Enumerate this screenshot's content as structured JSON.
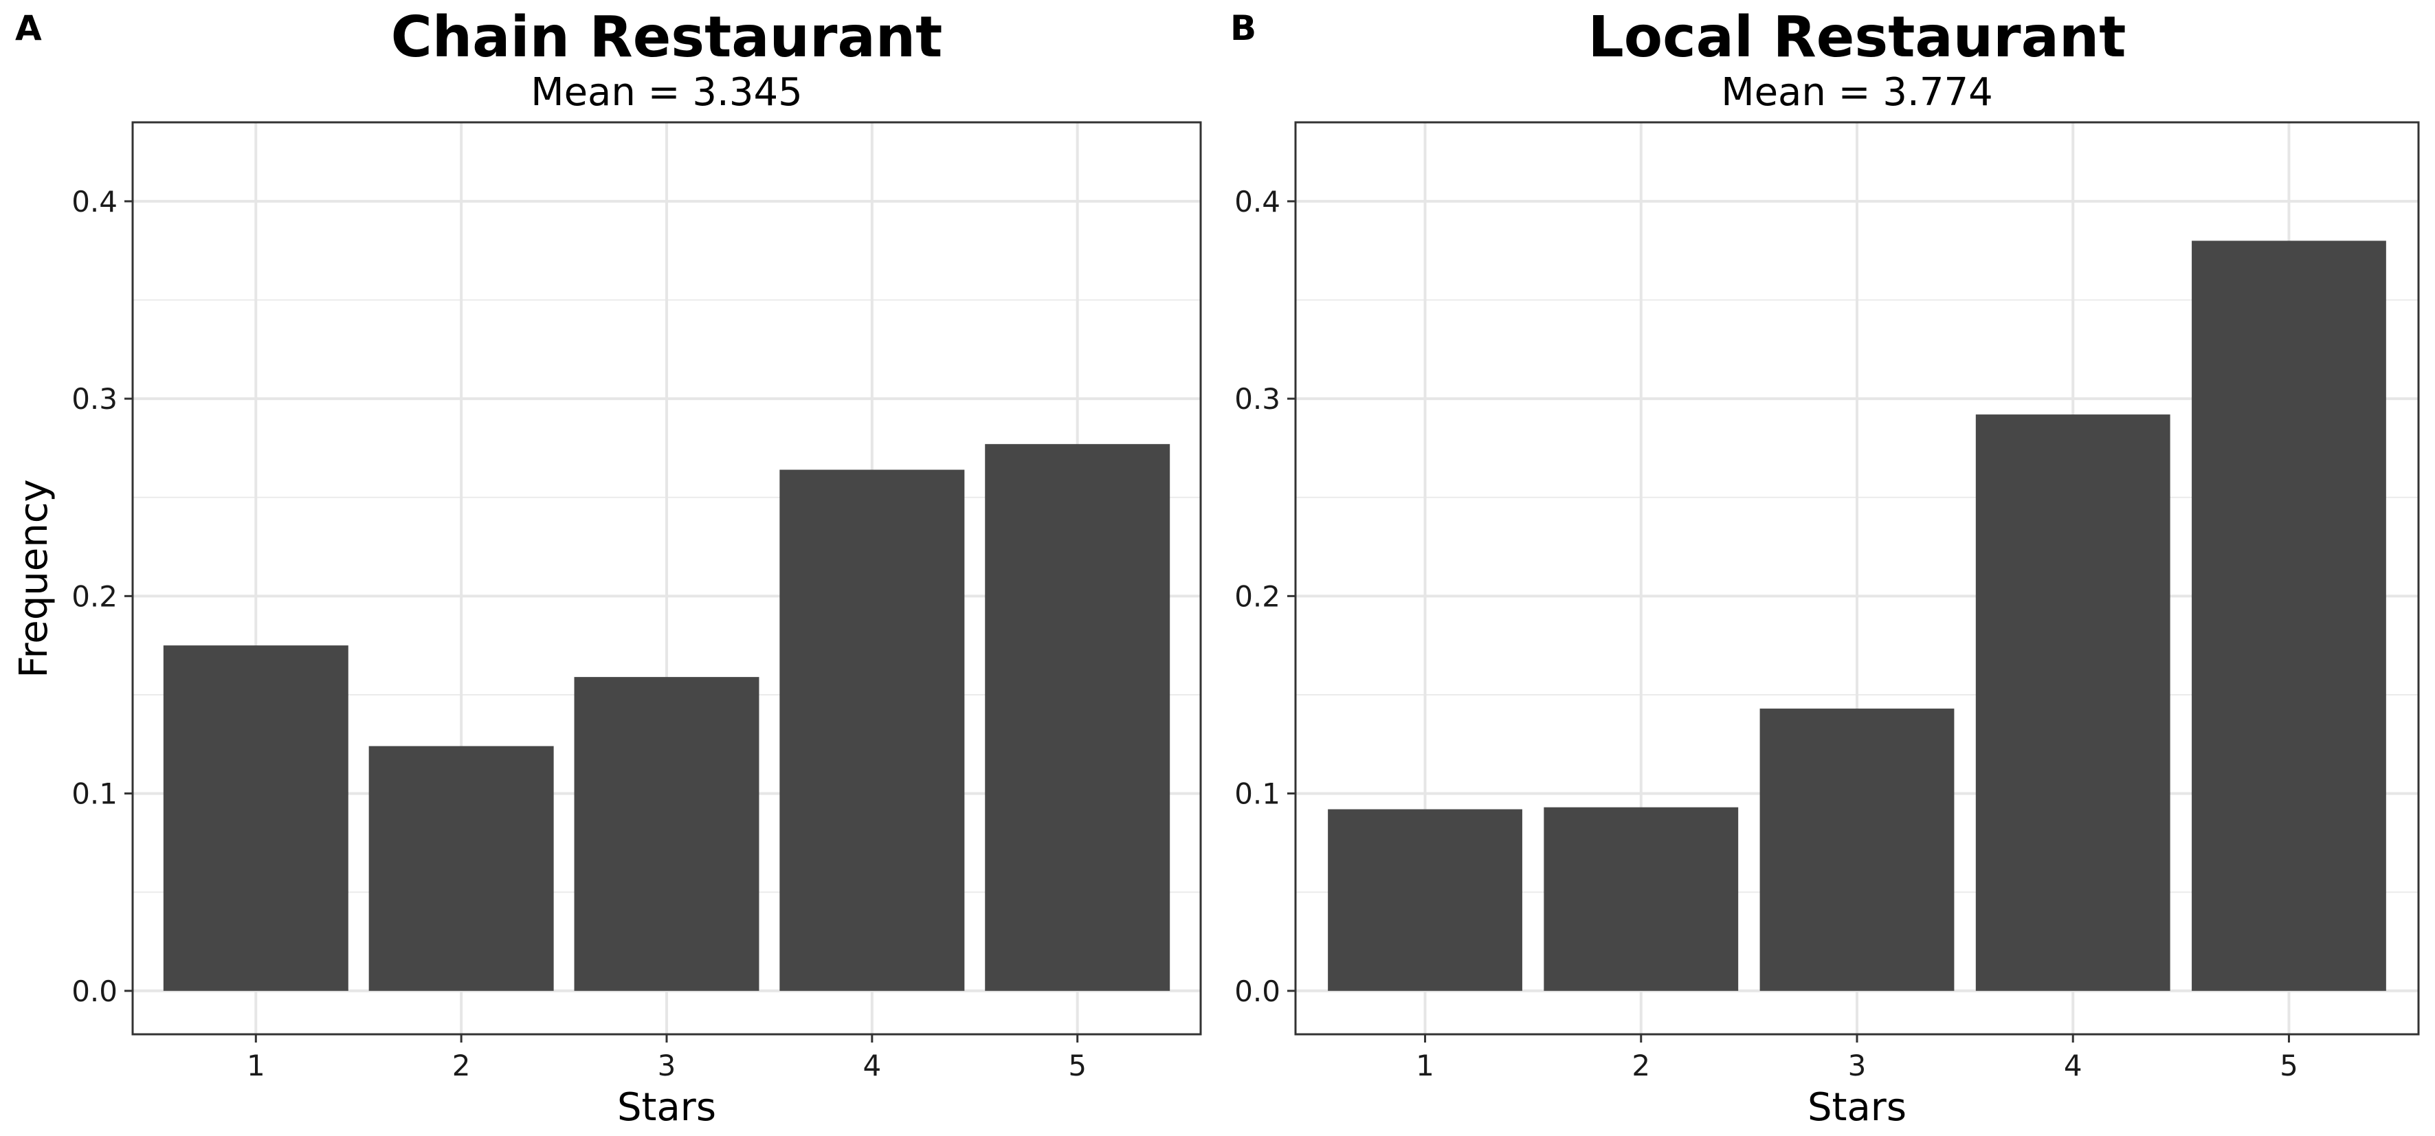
{
  "panels": [
    {
      "tag": "A",
      "title": "Chain Restaurant",
      "subtitle": "Mean = 3.345",
      "xlabel": "Stars",
      "ylabel": "Frequency"
    },
    {
      "tag": "B",
      "title": "Local Restaurant",
      "subtitle": "Mean = 3.774",
      "xlabel": "Stars",
      "ylabel": ""
    }
  ],
  "chart_data": [
    {
      "type": "bar",
      "title": "Chain Restaurant",
      "subtitle": "Mean = 3.345",
      "xlabel": "Stars",
      "ylabel": "Frequency",
      "categories": [
        "1",
        "2",
        "3",
        "4",
        "5"
      ],
      "values": [
        0.175,
        0.124,
        0.159,
        0.264,
        0.277
      ],
      "ylim": [
        -0.022,
        0.44
      ],
      "yticks": [
        "0.0",
        "0.1",
        "0.2",
        "0.3",
        "0.4"
      ],
      "grid": true,
      "bar_color": "#474747"
    },
    {
      "type": "bar",
      "title": "Local Restaurant",
      "subtitle": "Mean = 3.774",
      "xlabel": "Stars",
      "ylabel": "",
      "categories": [
        "1",
        "2",
        "3",
        "4",
        "5"
      ],
      "values": [
        0.092,
        0.093,
        0.143,
        0.292,
        0.38
      ],
      "ylim": [
        -0.022,
        0.44
      ],
      "yticks": [
        "0.0",
        "0.1",
        "0.2",
        "0.3",
        "0.4"
      ],
      "grid": true,
      "bar_color": "#474747"
    }
  ]
}
